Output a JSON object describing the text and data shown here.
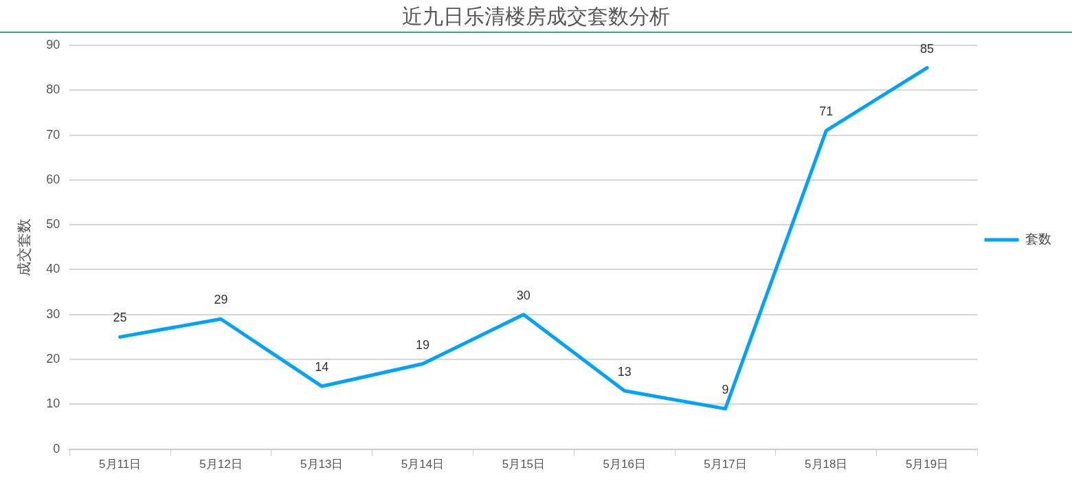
{
  "chart_data": {
    "type": "line",
    "title": "近九日乐清楼房成交套数分析",
    "ylabel": "成交套数",
    "categories": [
      "5月11日",
      "5月12日",
      "5月13日",
      "5月14日",
      "5月15日",
      "5月16日",
      "5月17日",
      "5月18日",
      "5月19日"
    ],
    "series": [
      {
        "name": "套数",
        "color": "#00a2ff",
        "values": [
          25,
          29,
          14,
          19,
          30,
          13,
          9,
          71,
          85
        ]
      }
    ],
    "ylim": [
      0,
      90
    ],
    "yticks": [
      0,
      10,
      20,
      30,
      40,
      50,
      60,
      70,
      80,
      90
    ],
    "grid": "y",
    "legend": "right",
    "marker": "none",
    "line_style": "solid",
    "data_labels": true
  }
}
